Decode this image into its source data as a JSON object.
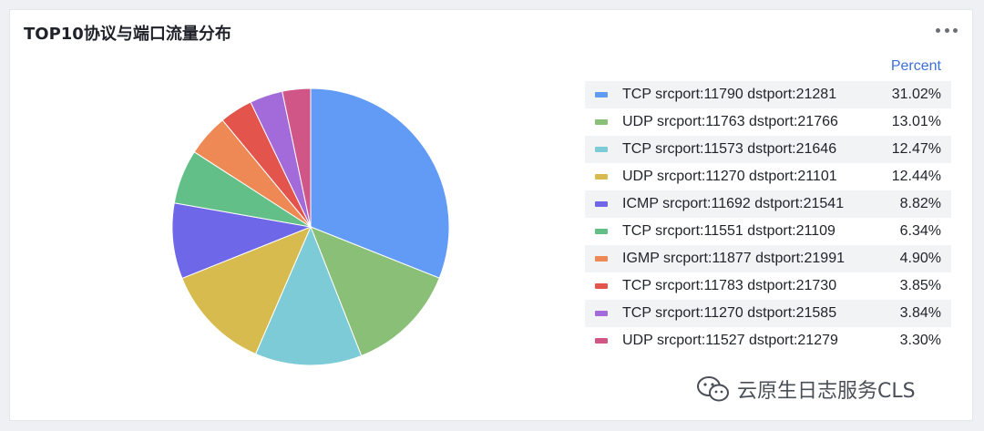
{
  "panel": {
    "title": "TOP10协议与端口流量分布",
    "more_icon": "more-horizontal-icon"
  },
  "watermark": {
    "icon": "wechat-icon",
    "text": "云原生日志服务CLS"
  },
  "chart_data": {
    "type": "pie",
    "legend_header": "Percent",
    "legend_placement": "right",
    "unit": "%",
    "slices": [
      {
        "label": "TCP srcport:11790 dstport:21281",
        "value": 31.02,
        "display": "31.02%",
        "color": "#629bf6"
      },
      {
        "label": "UDP srcport:11763 dstport:21766",
        "value": 13.01,
        "display": "13.01%",
        "color": "#89bf76"
      },
      {
        "label": "TCP srcport:11573 dstport:21646",
        "value": 12.47,
        "display": "12.47%",
        "color": "#7ccbd6"
      },
      {
        "label": "UDP srcport:11270 dstport:21101",
        "value": 12.44,
        "display": "12.44%",
        "color": "#d8bb4e"
      },
      {
        "label": "ICMP srcport:11692 dstport:21541",
        "value": 8.82,
        "display": "8.82%",
        "color": "#6e67e8"
      },
      {
        "label": "TCP srcport:11551 dstport:21109",
        "value": 6.34,
        "display": "6.34%",
        "color": "#62bf87"
      },
      {
        "label": "IGMP srcport:11877 dstport:21991",
        "value": 4.9,
        "display": "4.90%",
        "color": "#ee8955"
      },
      {
        "label": "TCP srcport:11783 dstport:21730",
        "value": 3.85,
        "display": "3.85%",
        "color": "#e2544c"
      },
      {
        "label": "TCP srcport:11270 dstport:21585",
        "value": 3.84,
        "display": "3.84%",
        "color": "#a26bd9"
      },
      {
        "label": "UDP srcport:11527 dstport:21279",
        "value": 3.3,
        "display": "3.30%",
        "color": "#d05687"
      }
    ]
  }
}
